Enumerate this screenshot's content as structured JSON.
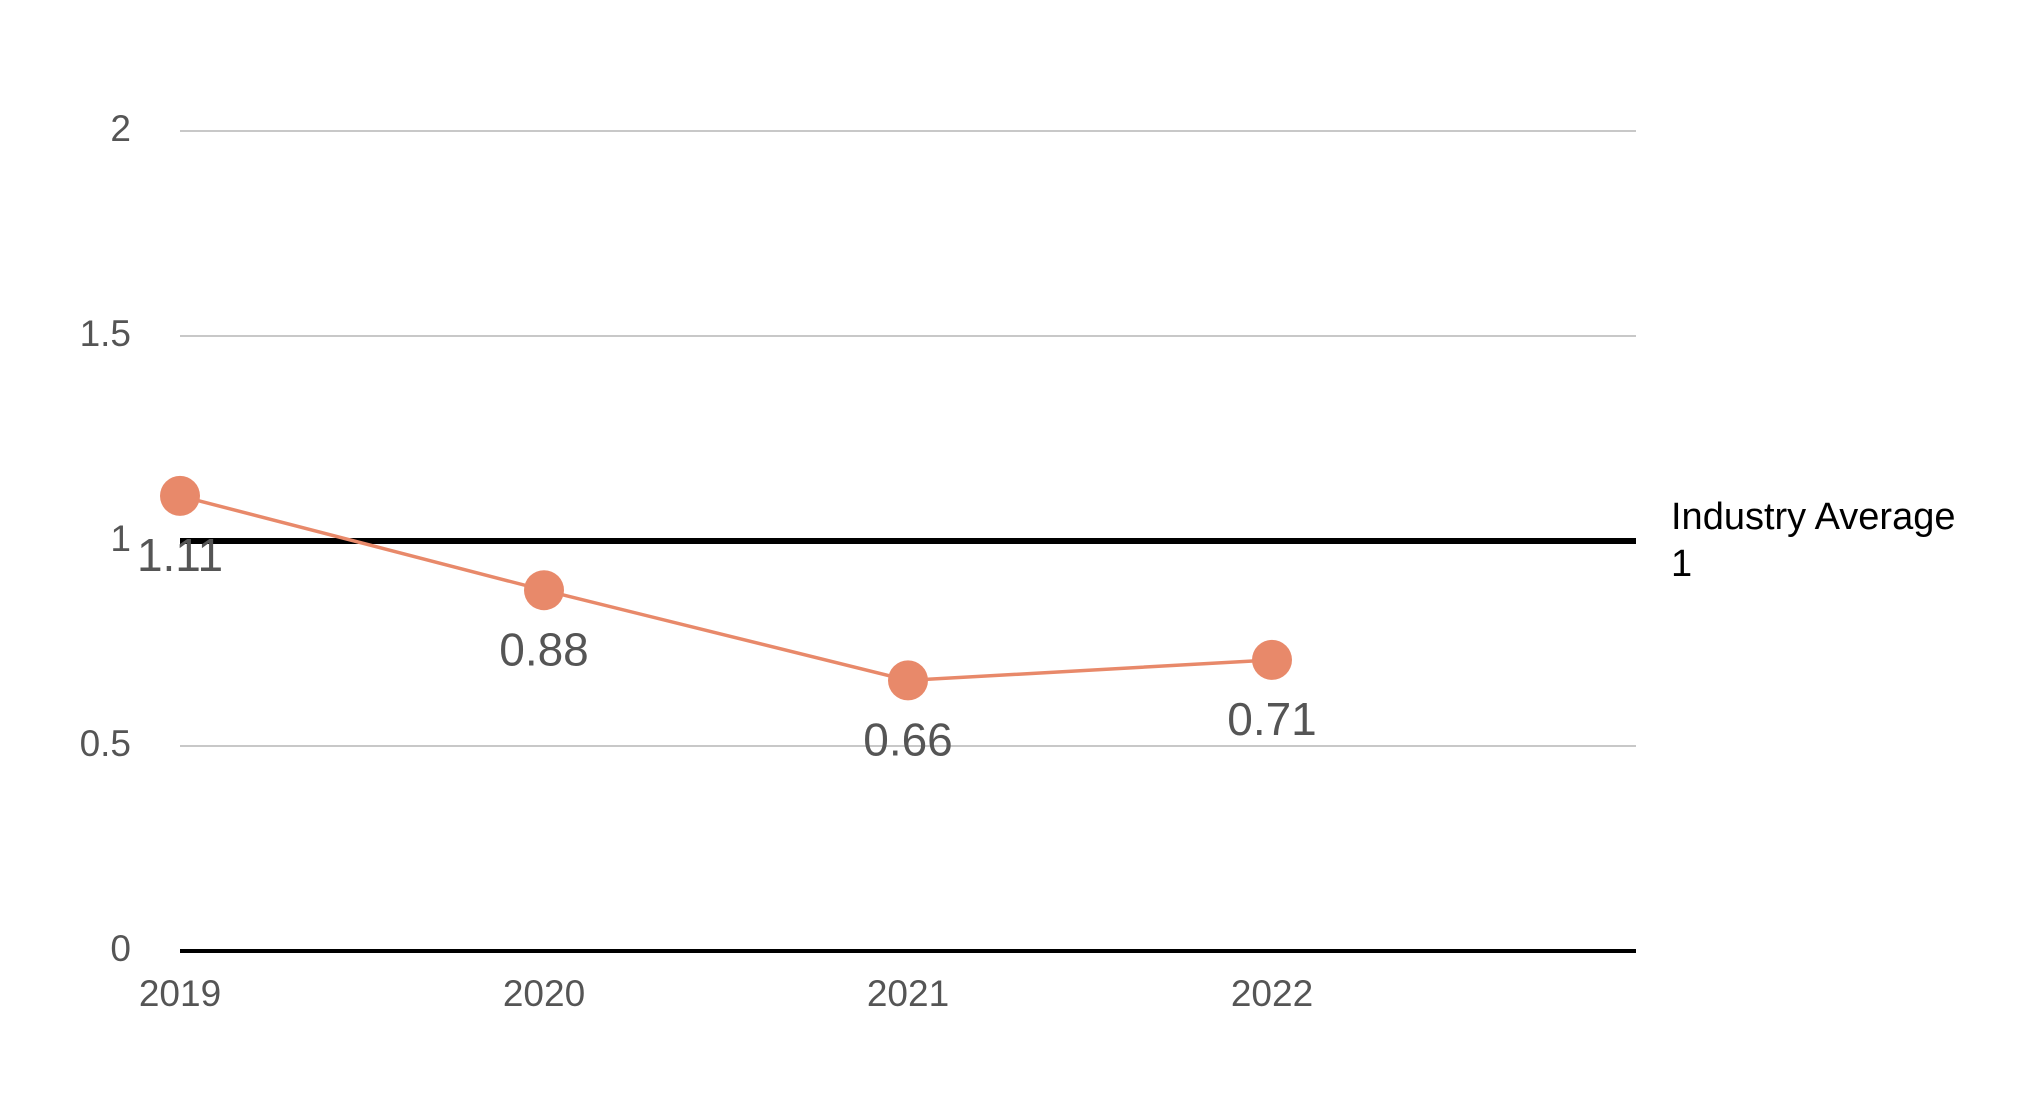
{
  "chart_data": {
    "type": "line",
    "x": [
      2019,
      2020,
      2021,
      2022
    ],
    "series": [
      {
        "color": "#e8896a",
        "values": [
          1.11,
          0.88,
          0.66,
          0.71
        ]
      }
    ],
    "xlim": [
      2019,
      2023
    ],
    "xticks": [
      2019,
      2020,
      2021,
      2022
    ],
    "ylim": [
      0,
      2
    ],
    "yticks": [
      0,
      0.5,
      1,
      1.5,
      2
    ],
    "grid": true,
    "reference_line": {
      "label": "Industry Average",
      "value": 1,
      "color": "#000000"
    }
  }
}
